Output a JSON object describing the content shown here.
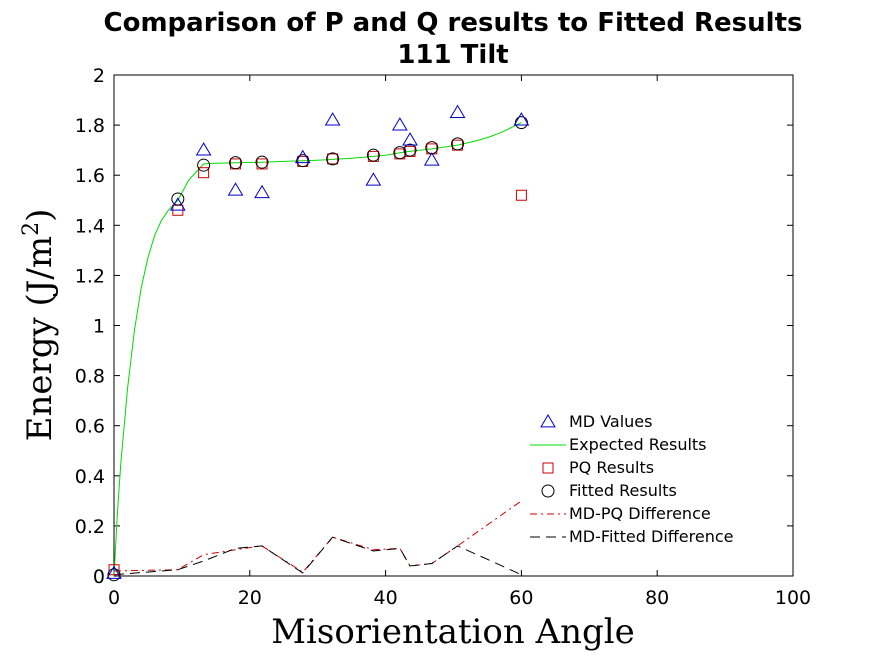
{
  "chart_data": {
    "type": "scatter",
    "title": [
      "Comparison of P and Q results to Fitted Results",
      "111 Tilt"
    ],
    "xlabel": "Misorientation Angle",
    "ylabel_main": "Energy (J/m",
    "ylabel_sup": "2",
    "ylabel_close": ")",
    "xlim": [
      0,
      100
    ],
    "ylim": [
      0,
      2
    ],
    "xticks": [
      0,
      20,
      40,
      60,
      80,
      100
    ],
    "yticks": [
      0,
      0.2,
      0.4,
      0.6,
      0.8,
      1,
      1.2,
      1.4,
      1.6,
      1.8,
      2
    ],
    "ytick_labels": [
      "0",
      "0.2",
      "0.4",
      "0.6",
      "0.8",
      "1",
      "1.2",
      "1.4",
      "1.6",
      "1.8",
      "2"
    ],
    "grid": false,
    "legend_position": "bottom-right",
    "series": [
      {
        "name": "MD Values",
        "kind": "marker-triangle",
        "color": "#0000cc",
        "x": [
          0,
          9.4,
          13.2,
          17.9,
          21.8,
          27.8,
          32.2,
          38.2,
          42.1,
          43.6,
          46.8,
          50.6,
          60
        ],
        "y": [
          0.01,
          1.48,
          1.7,
          1.54,
          1.53,
          1.67,
          1.82,
          1.58,
          1.8,
          1.74,
          1.66,
          1.85,
          1.82
        ]
      },
      {
        "name": "Expected Results",
        "kind": "line-solid",
        "color": "#00dd00",
        "x": [
          0,
          0.5,
          1,
          2,
          3,
          4,
          5,
          6,
          7,
          8,
          9.4,
          11,
          13.2,
          15,
          17.9,
          21.8,
          25,
          27.8,
          30,
          32.2,
          35,
          38.2,
          40,
          42.1,
          43.6,
          46.8,
          50.6,
          53,
          55,
          57,
          60
        ],
        "y": [
          0.0,
          0.25,
          0.45,
          0.75,
          0.98,
          1.15,
          1.27,
          1.36,
          1.42,
          1.46,
          1.5,
          1.58,
          1.645,
          1.648,
          1.65,
          1.652,
          1.655,
          1.658,
          1.66,
          1.663,
          1.668,
          1.675,
          1.68,
          1.69,
          1.695,
          1.705,
          1.72,
          1.735,
          1.75,
          1.77,
          1.81
        ]
      },
      {
        "name": "PQ Results",
        "kind": "marker-square",
        "color": "#cc0000",
        "x": [
          0,
          9.4,
          13.2,
          17.9,
          21.8,
          27.8,
          32.2,
          38.2,
          42.1,
          43.6,
          46.8,
          50.6,
          60
        ],
        "y": [
          0.025,
          1.46,
          1.61,
          1.645,
          1.645,
          1.655,
          1.665,
          1.675,
          1.685,
          1.695,
          1.705,
          1.72,
          1.52
        ]
      },
      {
        "name": "Fitted Results",
        "kind": "marker-circle",
        "color": "#000000",
        "x": [
          0,
          9.4,
          13.2,
          17.9,
          21.8,
          27.8,
          32.2,
          38.2,
          42.1,
          43.6,
          46.8,
          50.6,
          60
        ],
        "y": [
          0.005,
          1.505,
          1.64,
          1.65,
          1.652,
          1.658,
          1.665,
          1.68,
          1.69,
          1.7,
          1.71,
          1.725,
          1.81
        ]
      },
      {
        "name": "MD-PQ Difference",
        "kind": "line-dashdot",
        "color": "#cc0000",
        "x": [
          0,
          9.4,
          13.2,
          17.9,
          21.8,
          27.8,
          32.2,
          38.2,
          42.1,
          43.6,
          46.8,
          50.6,
          60
        ],
        "y": [
          0.02,
          0.025,
          0.085,
          0.105,
          0.12,
          0.015,
          0.155,
          0.105,
          0.11,
          0.04,
          0.05,
          0.12,
          0.3
        ]
      },
      {
        "name": "MD-Fitted Difference",
        "kind": "line-dashed",
        "color": "#000000",
        "x": [
          0,
          9.4,
          13.2,
          17.9,
          21.8,
          27.8,
          32.2,
          38.2,
          42.1,
          43.6,
          46.8,
          50.6,
          60
        ],
        "y": [
          0.005,
          0.025,
          0.06,
          0.11,
          0.12,
          0.012,
          0.155,
          0.1,
          0.11,
          0.04,
          0.05,
          0.12,
          0.005
        ]
      }
    ]
  }
}
